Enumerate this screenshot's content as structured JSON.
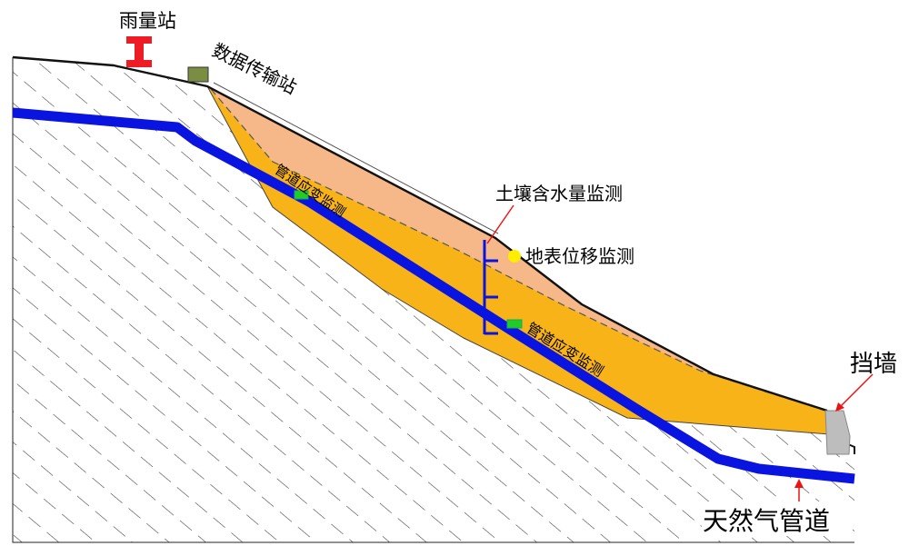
{
  "labels": {
    "rain_gauge": "雨量站",
    "data_station": "数据传输站",
    "strain_upper": "管道应变监测",
    "strain_lower": "管道应变监测",
    "soil_moisture": "土壤含水量监测",
    "surface_disp": "地表位移监测",
    "retaining_wall": "挡墙",
    "gas_pipeline": "天然气管道"
  },
  "colors": {
    "slide_body": "#f7b318",
    "slide_surface": "#f6b889",
    "pipeline": "#0a14e0",
    "rain_gauge": "#ee1c24",
    "data_station": "#7a8d43",
    "strain_gauge": "#22cc22",
    "disp_marker": "#ffee00",
    "wall": "#bdbdbd",
    "pointer": "#ee1111",
    "hatch": "#444444"
  },
  "icons": {
    "rain_gauge": "rain-gauge-icon",
    "data_station": "data-station-icon",
    "moisture_probe": "moisture-probe-icon"
  }
}
